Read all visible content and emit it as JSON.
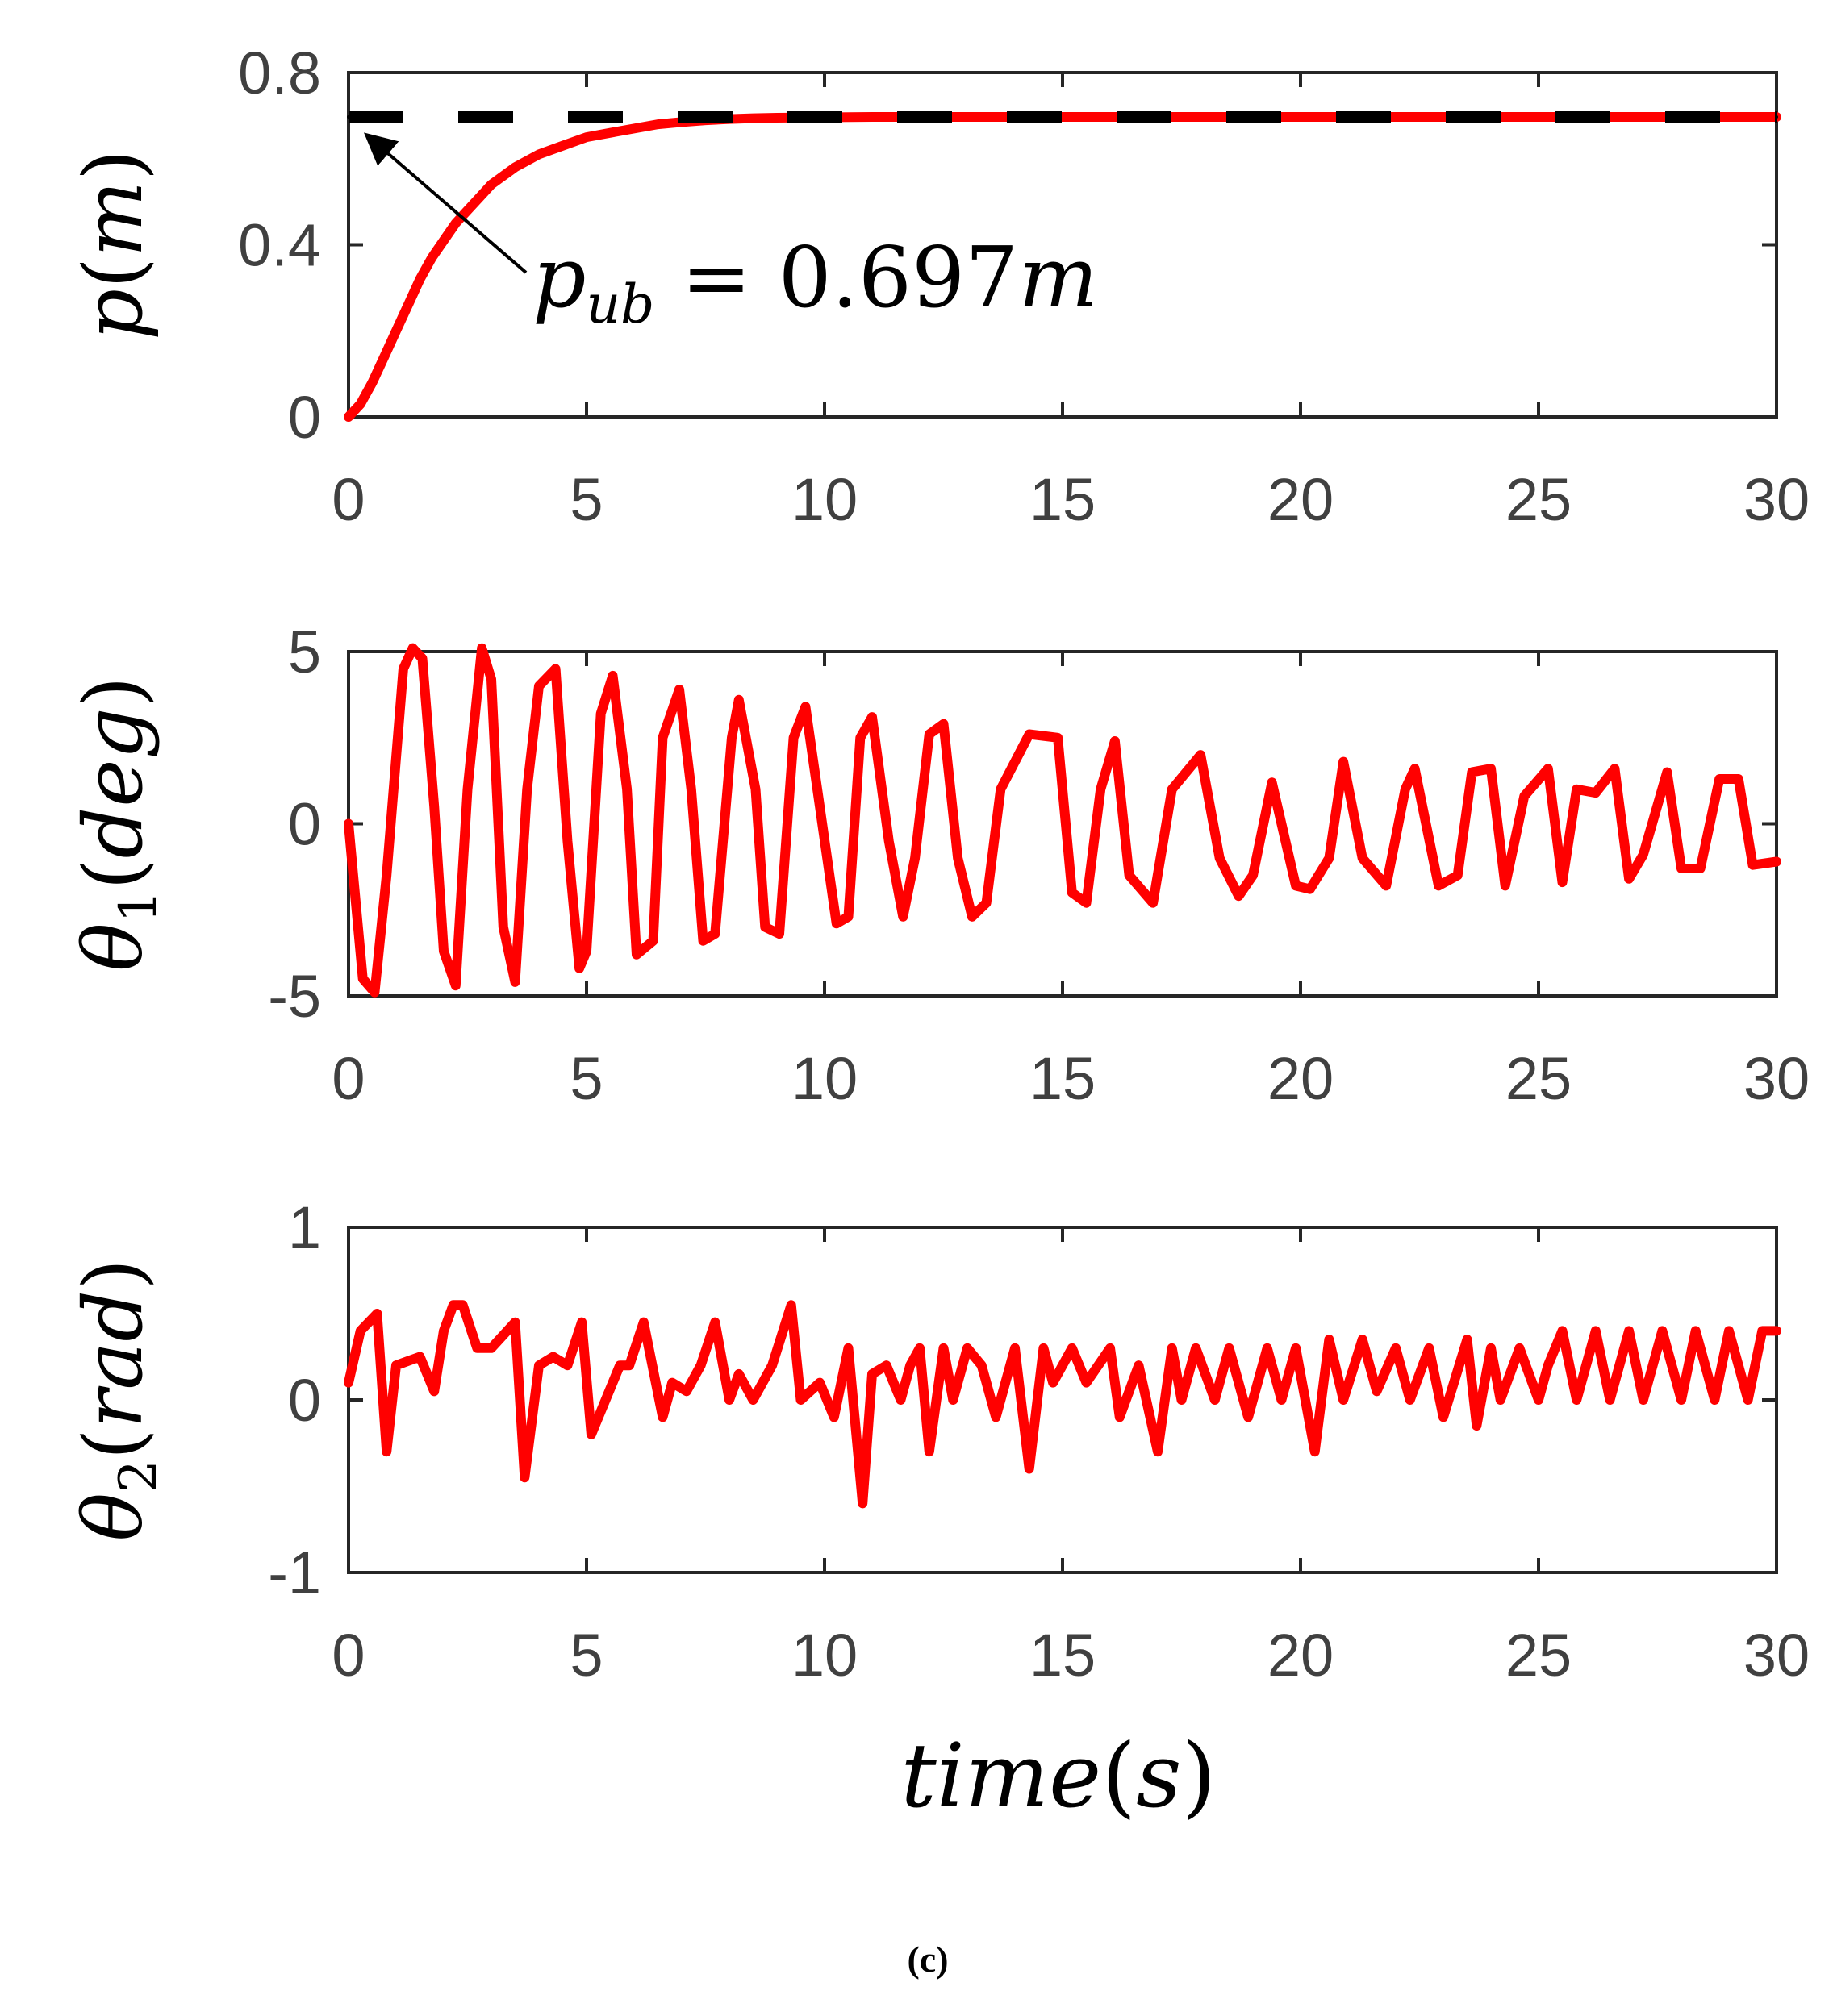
{
  "caption": "(c)",
  "colors": {
    "series": "#ff0000",
    "bound": "#000000",
    "axis": "#262626",
    "tick_text": "#404040"
  },
  "xlabel": {
    "base": "time",
    "open": "(",
    "var": "s",
    "close": ")"
  },
  "chart_data": [
    {
      "type": "line",
      "id": "p",
      "ylabel": {
        "base": "p",
        "open": "(",
        "unit": "m",
        "close": ")"
      },
      "xlim": [
        0,
        30
      ],
      "ylim": [
        0,
        0.8
      ],
      "xticks": [
        0,
        5,
        10,
        15,
        20,
        25,
        30
      ],
      "yticks": [
        0,
        0.4,
        0.8
      ],
      "xtick_labels": [
        "0",
        "5",
        "10",
        "15",
        "20",
        "25",
        "30"
      ],
      "ytick_labels": [
        "0",
        "0.4",
        "0.8"
      ],
      "series": [
        {
          "name": "p",
          "style": "solid",
          "x": [
            0,
            0.25,
            0.5,
            0.75,
            1,
            1.25,
            1.5,
            1.75,
            2,
            2.25,
            2.5,
            2.75,
            3,
            3.5,
            4,
            4.5,
            5,
            5.5,
            6,
            6.5,
            7,
            7.5,
            8,
            8.5,
            9,
            10,
            11,
            12,
            13,
            14,
            15,
            20,
            25,
            30
          ],
          "y": [
            0,
            0.03,
            0.08,
            0.14,
            0.2,
            0.26,
            0.32,
            0.37,
            0.41,
            0.45,
            0.48,
            0.51,
            0.54,
            0.58,
            0.61,
            0.63,
            0.65,
            0.66,
            0.67,
            0.68,
            0.685,
            0.689,
            0.692,
            0.694,
            0.695,
            0.696,
            0.697,
            0.697,
            0.697,
            0.697,
            0.697,
            0.697,
            0.697,
            0.697
          ]
        },
        {
          "name": "p_ub",
          "style": "dashed",
          "x": [
            0,
            30
          ],
          "y": [
            0.697,
            0.697
          ]
        }
      ],
      "annotation": {
        "sym": "p",
        "sub": "ub",
        "rest": " = 0.697",
        "unit": "m",
        "x": 0,
        "y": 0.697
      }
    },
    {
      "type": "line",
      "id": "theta1",
      "ylabel": {
        "base": "θ",
        "sub": "1",
        "open": "(",
        "unit": "deg",
        "close": ")"
      },
      "xlim": [
        0,
        30
      ],
      "ylim": [
        -5,
        5
      ],
      "xticks": [
        0,
        5,
        10,
        15,
        20,
        25,
        30
      ],
      "yticks": [
        -5,
        0,
        5
      ],
      "xtick_labels": [
        "0",
        "5",
        "10",
        "15",
        "20",
        "25",
        "30"
      ],
      "ytick_labels": [
        "-5",
        "0",
        "5"
      ],
      "series": [
        {
          "name": "theta1",
          "x": [
            0,
            0.3,
            0.55,
            0.8,
            1.15,
            1.35,
            1.55,
            1.8,
            2,
            2.25,
            2.5,
            2.8,
            3.0,
            3.25,
            3.5,
            3.75,
            4.0,
            4.35,
            4.6,
            4.85,
            5.0,
            5.3,
            5.55,
            5.85,
            6.05,
            6.4,
            6.6,
            6.95,
            7.2,
            7.45,
            7.7,
            8.05,
            8.2,
            8.55,
            8.75,
            9.05,
            9.35,
            9.6,
            9.9,
            10.25,
            10.5,
            10.75,
            11.0,
            11.35,
            11.65,
            11.9,
            12.2,
            12.5,
            12.8,
            13.1,
            13.4,
            13.7,
            14.3,
            14.9,
            15.2,
            15.5,
            15.8,
            16.1,
            16.4,
            16.9,
            17.3,
            17.9,
            18.3,
            18.7,
            19.0,
            19.4,
            19.9,
            20.2,
            20.6,
            20.9,
            21.3,
            21.8,
            22.2,
            22.4,
            22.9,
            23.3,
            23.6,
            24.0,
            24.3,
            24.7,
            25.2,
            25.5,
            25.8,
            26.2,
            26.6,
            26.9,
            27.2,
            27.7,
            28.0,
            28.4,
            28.8,
            29.2,
            29.5,
            30.0
          ],
          "y": [
            0,
            -4.5,
            -4.9,
            -1.5,
            4.5,
            5.1,
            4.8,
            0.5,
            -3.7,
            -4.7,
            1.0,
            5.1,
            4.2,
            -3.0,
            -4.6,
            1.0,
            4.0,
            4.5,
            -0.5,
            -4.2,
            -3.7,
            3.2,
            4.3,
            1.0,
            -3.8,
            -3.4,
            2.5,
            3.9,
            1.0,
            -3.4,
            -3.2,
            2.5,
            3.6,
            1.0,
            -3.0,
            -3.2,
            2.5,
            3.4,
            0.5,
            -2.9,
            -2.7,
            2.5,
            3.1,
            -0.5,
            -2.7,
            -1.0,
            2.6,
            2.9,
            -1.0,
            -2.7,
            -2.3,
            1.0,
            2.6,
            2.5,
            -2.0,
            -2.3,
            1.0,
            2.4,
            -1.5,
            -2.3,
            1.0,
            2.0,
            -1.0,
            -2.1,
            -1.5,
            1.2,
            -1.8,
            -1.9,
            -1.0,
            1.8,
            -1.0,
            -1.8,
            1.0,
            1.6,
            -1.8,
            -1.5,
            1.5,
            1.6,
            -1.8,
            0.8,
            1.6,
            -1.7,
            1.0,
            0.9,
            1.6,
            -1.6,
            -0.9,
            1.5,
            -1.3,
            -1.3,
            1.3,
            1.3,
            -1.2,
            -1.1
          ]
        }
      ]
    },
    {
      "type": "line",
      "id": "theta2",
      "ylabel": {
        "base": "θ",
        "sub": "2",
        "open": "(",
        "unit": "rad",
        "close": ")"
      },
      "xlim": [
        0,
        30
      ],
      "ylim": [
        -1,
        1
      ],
      "xticks": [
        0,
        5,
        10,
        15,
        20,
        25,
        30
      ],
      "yticks": [
        -1,
        0,
        1
      ],
      "xtick_labels": [
        "0",
        "5",
        "10",
        "15",
        "20",
        "25",
        "30"
      ],
      "ytick_labels": [
        "-1",
        "0",
        "1"
      ],
      "series": [
        {
          "name": "theta2",
          "x": [
            0,
            0.25,
            0.6,
            0.8,
            1,
            1.5,
            1.8,
            2.0,
            2.2,
            2.4,
            2.7,
            3.0,
            3.5,
            3.7,
            4.0,
            4.3,
            4.6,
            4.9,
            5.1,
            5.4,
            5.7,
            5.9,
            6.2,
            6.6,
            6.8,
            7.1,
            7.4,
            7.7,
            8.0,
            8.2,
            8.5,
            8.9,
            9.3,
            9.5,
            9.9,
            10.2,
            10.5,
            10.8,
            11.0,
            11.3,
            11.6,
            11.8,
            12.0,
            12.2,
            12.5,
            12.7,
            13.0,
            13.3,
            13.6,
            14.0,
            14.3,
            14.6,
            14.8,
            15.2,
            15.5,
            16.0,
            16.2,
            16.6,
            17.0,
            17.3,
            17.5,
            17.8,
            18.2,
            18.5,
            18.9,
            19.3,
            19.6,
            19.9,
            20.3,
            20.6,
            20.9,
            21.3,
            21.6,
            22.0,
            22.3,
            22.7,
            23.0,
            23.5,
            23.7,
            24.0,
            24.2,
            24.6,
            25.0,
            25.2,
            25.5,
            25.8,
            26.2,
            26.5,
            26.9,
            27.2,
            27.6,
            28.0,
            28.3,
            28.7,
            29.0,
            29.4,
            29.7,
            30.0
          ],
          "y": [
            0.1,
            0.4,
            0.5,
            -0.3,
            0.2,
            0.25,
            0.05,
            0.4,
            0.55,
            0.55,
            0.3,
            0.3,
            0.45,
            -0.45,
            0.2,
            0.25,
            0.2,
            0.45,
            -0.2,
            0.0,
            0.2,
            0.2,
            0.45,
            -0.1,
            0.1,
            0.05,
            0.2,
            0.45,
            0.0,
            0.15,
            0.0,
            0.2,
            0.55,
            0.0,
            0.1,
            -0.1,
            0.3,
            -0.6,
            0.15,
            0.2,
            0.0,
            0.2,
            0.3,
            -0.3,
            0.3,
            0.0,
            0.3,
            0.2,
            -0.1,
            0.3,
            -0.4,
            0.3,
            0.1,
            0.3,
            0.1,
            0.3,
            -0.1,
            0.2,
            -0.3,
            0.3,
            0.0,
            0.3,
            0.0,
            0.3,
            -0.1,
            0.3,
            0.0,
            0.3,
            -0.3,
            0.35,
            0.0,
            0.35,
            0.05,
            0.3,
            0.0,
            0.3,
            -0.1,
            0.35,
            -0.15,
            0.3,
            0.0,
            0.3,
            0.0,
            0.2,
            0.4,
            0.0,
            0.4,
            0.0,
            0.4,
            0.0,
            0.4,
            0.0,
            0.4,
            0.0,
            0.4,
            0.0,
            0.4,
            0.4
          ]
        }
      ]
    }
  ]
}
